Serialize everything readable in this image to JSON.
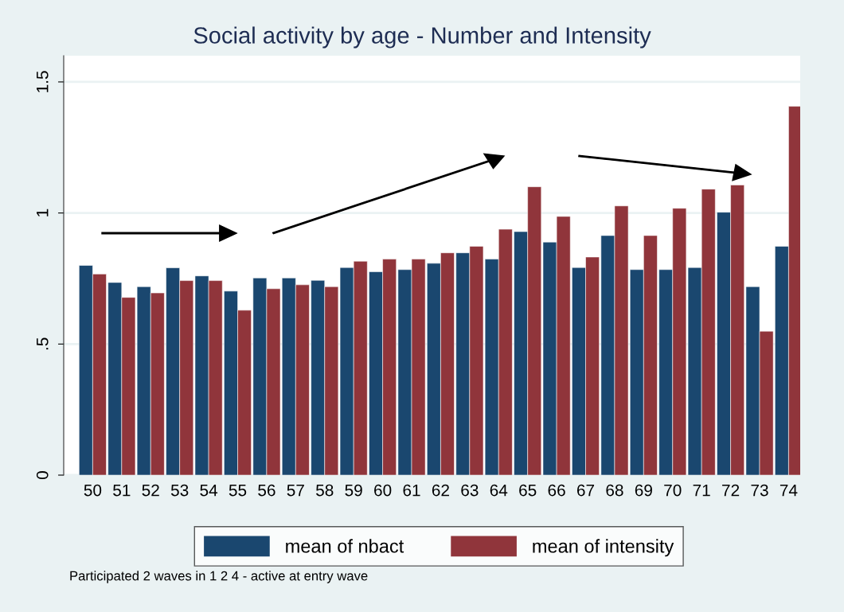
{
  "chart_data": {
    "type": "bar",
    "title": "Social activity by age - Number and Intensity",
    "categories": [
      "50",
      "51",
      "52",
      "53",
      "54",
      "55",
      "56",
      "57",
      "58",
      "59",
      "60",
      "61",
      "62",
      "63",
      "64",
      "65",
      "66",
      "67",
      "68",
      "69",
      "70",
      "71",
      "72",
      "73",
      "74"
    ],
    "series": [
      {
        "name": "mean of nbact",
        "color": "#1a476f",
        "values": [
          0.8,
          0.735,
          0.719,
          0.791,
          0.76,
          0.702,
          0.752,
          0.752,
          0.743,
          0.792,
          0.776,
          0.784,
          0.808,
          0.848,
          0.824,
          0.929,
          0.889,
          0.792,
          0.914,
          0.784,
          0.784,
          0.792,
          1.003,
          0.719,
          0.873
        ]
      },
      {
        "name": "mean of intensity",
        "color": "#90353b",
        "values": [
          0.767,
          0.678,
          0.695,
          0.742,
          0.742,
          0.629,
          0.711,
          0.726,
          0.719,
          0.816,
          0.824,
          0.824,
          0.848,
          0.873,
          0.938,
          1.1,
          0.987,
          0.832,
          1.027,
          0.914,
          1.018,
          1.091,
          1.107,
          0.549,
          1.407
        ]
      }
    ],
    "ylim": [
      0,
      1.6
    ],
    "yticks": [
      0,
      {
        "value": 0.5,
        "label": ".5"
      },
      1,
      1.5
    ],
    "grid": "y",
    "legend": "bottom",
    "annotations": [
      "Participated 2 waves in 1 2 4 - active at entry wave"
    ]
  }
}
